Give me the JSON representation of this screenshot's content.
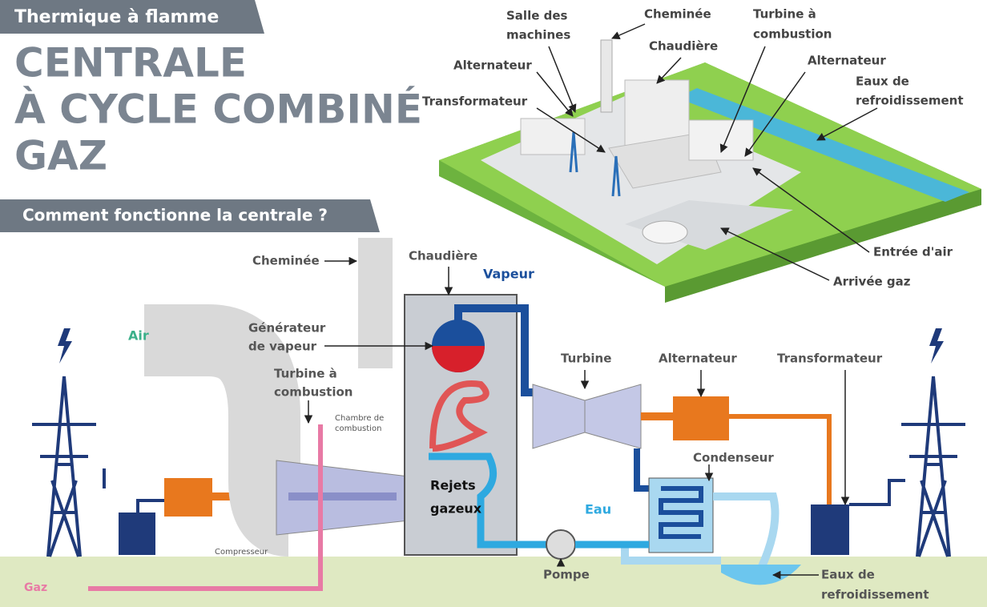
{
  "header": {
    "category": "Thermique à flamme",
    "title": [
      "CENTRALE",
      "À CYCLE COMBINÉ",
      "GAZ"
    ],
    "subtitle": "Comment fonctionne la centrale ?"
  },
  "plant_labels": [
    {
      "lines": [
        "Salle des",
        "machines"
      ]
    },
    {
      "lines": [
        "Cheminée"
      ]
    },
    {
      "lines": [
        "Turbine à",
        "combustion"
      ]
    },
    {
      "lines": [
        "Alternateur"
      ]
    },
    {
      "lines": [
        "Chaudière"
      ]
    },
    {
      "lines": [
        "Alternateur"
      ]
    },
    {
      "lines": [
        "Eaux de",
        "refroidissement"
      ]
    },
    {
      "lines": [
        "Transformateur"
      ]
    },
    {
      "lines": [
        "Entrée d'air"
      ]
    },
    {
      "lines": [
        "Arrivée gaz"
      ]
    }
  ],
  "diagram_labels": [
    {
      "lines": [
        "Cheminée"
      ]
    },
    {
      "lines": [
        "Chaudière"
      ]
    },
    {
      "lines": [
        "Vapeur"
      ]
    },
    {
      "lines": [
        "Générateur",
        "de vapeur"
      ]
    },
    {
      "lines": [
        "Air"
      ]
    },
    {
      "lines": [
        "Turbine à",
        "combustion"
      ]
    },
    {
      "lines": [
        "Chambre de",
        "combustion"
      ]
    },
    {
      "lines": [
        "Turbine"
      ]
    },
    {
      "lines": [
        "Alternateur"
      ]
    },
    {
      "lines": [
        "Transformateur"
      ]
    },
    {
      "lines": [
        "Condenseur"
      ]
    },
    {
      "lines": [
        "Rejets",
        "gazeux"
      ]
    },
    {
      "lines": [
        "Eau"
      ]
    },
    {
      "lines": [
        "Pompe"
      ]
    },
    {
      "lines": [
        "Compresseur"
      ]
    },
    {
      "lines": [
        "Gaz"
      ]
    },
    {
      "lines": [
        "Eaux de",
        "refroidissement"
      ]
    }
  ]
}
